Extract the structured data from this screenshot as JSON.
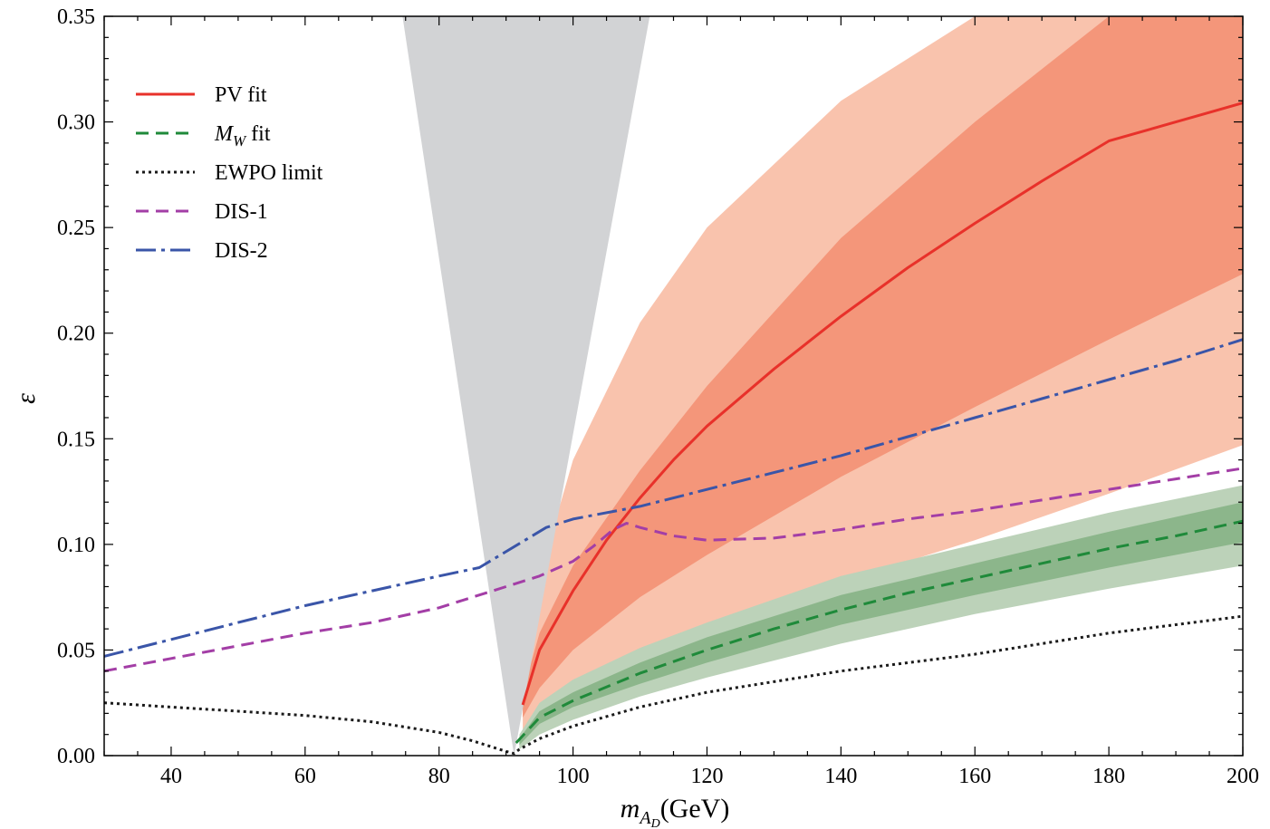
{
  "chart_data": {
    "type": "line",
    "xlabel_base": "m",
    "xlabel_sub": "A",
    "xlabel_subsub": "D",
    "xlabel_units": "(GeV)",
    "ylabel": "ε",
    "xlim": [
      30,
      200
    ],
    "ylim": [
      0,
      0.35
    ],
    "x_ticks": [
      40,
      60,
      80,
      100,
      120,
      140,
      160,
      180,
      200
    ],
    "x_tick_labels": [
      "40",
      "60",
      "80",
      "100",
      "120",
      "140",
      "160",
      "180",
      "200"
    ],
    "y_ticks": [
      0,
      0.05,
      0.1,
      0.15,
      0.2,
      0.25,
      0.3,
      0.35
    ],
    "y_tick_labels": [
      "0.00",
      "0.05",
      "0.10",
      "0.15",
      "0.20",
      "0.25",
      "0.30",
      "0.35"
    ],
    "legend_position": "top-left",
    "excluded_region": {
      "color": "#d2d3d5",
      "tip": [
        91.2,
        0
      ],
      "top_left_x": 74.5,
      "top_right_x": 111.5
    },
    "bands": [
      {
        "id": "pv-2sigma",
        "color": "#f9c3ad",
        "x": [
          92.5,
          95,
          100,
          110,
          120,
          140,
          160,
          180,
          200
        ],
        "lower": [
          0.012,
          0.02,
          0.031,
          0.048,
          0.06,
          0.082,
          0.102,
          0.124,
          0.147
        ],
        "upper": [
          0.05,
          0.085,
          0.14,
          0.205,
          0.25,
          0.31,
          0.35,
          0.35,
          0.35
        ]
      },
      {
        "id": "pv-1sigma",
        "color": "#f4967a",
        "x": [
          92.5,
          95,
          100,
          110,
          120,
          140,
          160,
          180,
          200
        ],
        "lower": [
          0.018,
          0.032,
          0.05,
          0.075,
          0.095,
          0.132,
          0.165,
          0.197,
          0.228
        ],
        "upper": [
          0.03,
          0.058,
          0.09,
          0.135,
          0.175,
          0.245,
          0.3,
          0.35,
          0.35
        ]
      },
      {
        "id": "mw-2sigma",
        "color": "#bcd2b9",
        "x": [
          92,
          95,
          100,
          110,
          120,
          140,
          160,
          180,
          200
        ],
        "lower": [
          0.003,
          0.01,
          0.017,
          0.028,
          0.037,
          0.053,
          0.067,
          0.079,
          0.09
        ],
        "upper": [
          0.01,
          0.025,
          0.036,
          0.051,
          0.063,
          0.085,
          0.1,
          0.115,
          0.128
        ]
      },
      {
        "id": "mw-1sigma",
        "color": "#8cb68b",
        "x": [
          92,
          95,
          100,
          110,
          120,
          140,
          160,
          180,
          200
        ],
        "lower": [
          0.005,
          0.015,
          0.023,
          0.034,
          0.044,
          0.062,
          0.076,
          0.089,
          0.101
        ],
        "upper": [
          0.008,
          0.021,
          0.03,
          0.044,
          0.056,
          0.076,
          0.091,
          0.106,
          0.12
        ]
      }
    ],
    "series": [
      {
        "name": "PV fit",
        "color": "#e8312a",
        "dash": "",
        "x": [
          92.5,
          95,
          100,
          105,
          110,
          115,
          120,
          130,
          140,
          150,
          160,
          170,
          180,
          190,
          200
        ],
        "y": [
          0.024,
          0.05,
          0.078,
          0.102,
          0.122,
          0.14,
          0.156,
          0.183,
          0.208,
          0.231,
          0.252,
          0.272,
          0.291,
          0.3,
          0.309
        ]
      },
      {
        "name": "M_W fit",
        "color": "#1f8a3a",
        "dash": "14 8",
        "x": [
          91.5,
          95,
          100,
          110,
          120,
          130,
          140,
          150,
          160,
          170,
          180,
          190,
          200
        ],
        "y": [
          0.006,
          0.018,
          0.026,
          0.039,
          0.05,
          0.06,
          0.069,
          0.077,
          0.084,
          0.091,
          0.098,
          0.104,
          0.111
        ]
      },
      {
        "name": "EWPO limit",
        "color": "#1a1a1a",
        "dash": "3 4",
        "x": [
          30,
          40,
          50,
          60,
          70,
          80,
          85,
          88,
          90,
          91.2,
          92,
          95,
          100,
          110,
          120,
          130,
          140,
          150,
          160,
          170,
          180,
          190,
          200
        ],
        "y": [
          0.025,
          0.023,
          0.021,
          0.019,
          0.016,
          0.011,
          0.007,
          0.004,
          0.002,
          0.001,
          0.003,
          0.008,
          0.014,
          0.023,
          0.03,
          0.035,
          0.04,
          0.044,
          0.048,
          0.053,
          0.058,
          0.062,
          0.066
        ]
      },
      {
        "name": "DIS-1",
        "color": "#a33ea6",
        "dash": "14 8",
        "x": [
          30,
          40,
          50,
          60,
          70,
          80,
          85,
          90,
          95,
          100,
          103,
          106,
          108,
          110,
          115,
          120,
          130,
          140,
          150,
          160,
          170,
          180,
          190,
          200
        ],
        "y": [
          0.04,
          0.046,
          0.052,
          0.058,
          0.063,
          0.07,
          0.075,
          0.08,
          0.085,
          0.092,
          0.099,
          0.107,
          0.11,
          0.108,
          0.104,
          0.102,
          0.103,
          0.107,
          0.112,
          0.116,
          0.121,
          0.126,
          0.131,
          0.136
        ]
      },
      {
        "name": "DIS-2",
        "color": "#3a55a8",
        "dash": "22 6 4 6",
        "x": [
          30,
          40,
          50,
          60,
          70,
          80,
          86,
          96,
          100,
          110,
          120,
          130,
          140,
          150,
          160,
          170,
          180,
          190,
          200
        ],
        "y": [
          0.047,
          0.055,
          0.063,
          0.071,
          0.078,
          0.085,
          0.089,
          0.108,
          0.112,
          0.118,
          0.126,
          0.134,
          0.142,
          0.151,
          0.16,
          0.169,
          0.178,
          0.187,
          0.197
        ]
      }
    ],
    "legend": [
      {
        "label": "PV fit",
        "color": "#e8312a",
        "dash": ""
      },
      {
        "label_italic": "M",
        "label_sub": "W",
        "label_rest": " fit",
        "color": "#1f8a3a",
        "dash": "14 8"
      },
      {
        "label": "EWPO limit",
        "color": "#1a1a1a",
        "dash": "3 4"
      },
      {
        "label": "DIS-1",
        "color": "#a33ea6",
        "dash": "14 8"
      },
      {
        "label": "DIS-2",
        "color": "#3a55a8",
        "dash": "22 6 4 6"
      }
    ]
  }
}
